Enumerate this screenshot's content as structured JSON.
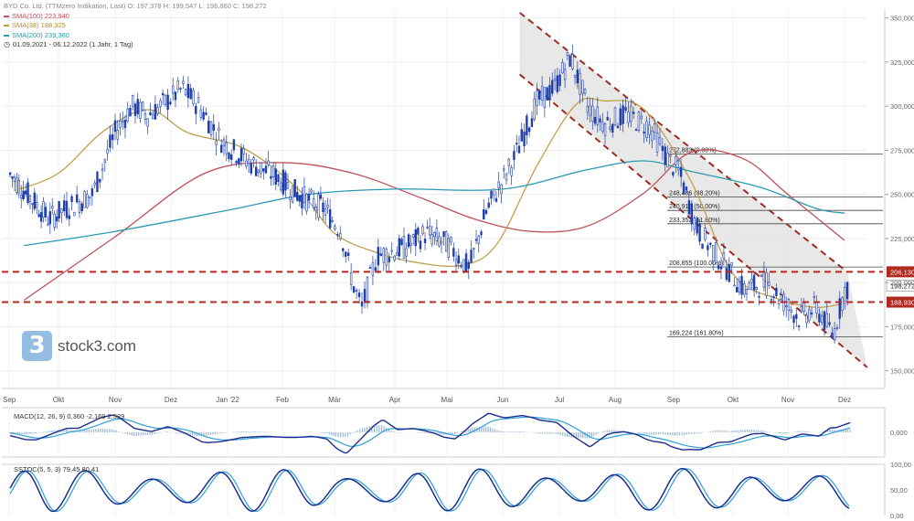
{
  "legend": {
    "title": "BYD Co. Ltd. (TTMzero Indikation, Last)  O: 197,378  H: 199,547  L: 196,860  C: 198,272",
    "sma100": "SMA(100)  223,940",
    "sma38": "SMA(38)  188,325",
    "sma200": "SMA(200)  239,360",
    "range": "01.09.2021 - 06.12.2022   (1 Jahr, 1 Tag)"
  },
  "logo": {
    "text": "stock3.com",
    "glyph": "3"
  },
  "colors": {
    "candle": "#1f3fae",
    "sma100": "#c0505a",
    "sma38": "#c1a04a",
    "sma200": "#2b9bb0",
    "support": "#b02a22",
    "channel": "#a02a22",
    "macd": "#1c2e8c",
    "signal": "#2aa0d8",
    "hist": "#9ab6d6"
  },
  "chart_data": {
    "type": "line",
    "x_labels": [
      "Sep",
      "Okt",
      "Nov",
      "Dez",
      "Jan '22",
      "Feb",
      "Mär",
      "Apr",
      "Mai",
      "Jun",
      "Jul",
      "Aug",
      "Sep",
      "Okt",
      "Nov",
      "Dez"
    ],
    "y_ticks": [
      "350,000",
      "325,000",
      "300,000",
      "275,000",
      "250,000",
      "225,000",
      "200,000",
      "175,000",
      "150,000"
    ],
    "ylim": [
      140,
      355
    ],
    "series": [
      {
        "name": "SMA(100)",
        "x": [
          0.3,
          2,
          3.6,
          5,
          6.3,
          7.5,
          8.5,
          9.5,
          10.5,
          11.5,
          12.3,
          13.2,
          14,
          15
        ],
        "y": [
          190,
          226,
          262,
          268,
          262,
          248,
          236,
          229,
          232,
          251,
          274,
          270,
          250,
          223.94
        ]
      },
      {
        "name": "SMA(38)",
        "x": [
          0.1,
          1,
          1.8,
          2.6,
          3.3,
          4.3,
          5.3,
          6,
          6.7,
          7.5,
          8.3,
          8.9,
          9.6,
          10.3,
          10.8,
          11.5,
          12.3,
          13,
          13.8,
          14.5,
          15
        ],
        "y": [
          252,
          262,
          286,
          298,
          285,
          276,
          253,
          228,
          217,
          211,
          210,
          222,
          266,
          301,
          303,
          298,
          257,
          205,
          191,
          186,
          188.325
        ]
      },
      {
        "name": "SMA(200)",
        "x": [
          0.3,
          2,
          4,
          5.5,
          7,
          9,
          10.5,
          11.5,
          12.3,
          13.5,
          14.5,
          15
        ],
        "y": [
          221,
          229,
          241,
          250,
          253,
          253,
          264,
          269,
          263,
          254,
          242,
          239.36
        ]
      }
    ],
    "price_labels": [
      "206,130",
      "198,272",
      "188,930"
    ],
    "support_levels": [
      206.13,
      188.93
    ],
    "fib_levels": [
      {
        "label": "272,883 (0.00%)",
        "value": 272.883
      },
      {
        "label": "248,486 (38.20%)",
        "value": 248.486
      },
      {
        "label": "240,919 (50.00%)",
        "value": 240.919
      },
      {
        "label": "233,352 (61.80%)",
        "value": 233.352
      },
      {
        "label": "208,855 (100.00%)",
        "value": 208.855
      },
      {
        "label": "169,224 (161.80%)",
        "value": 169.224
      }
    ],
    "channel": {
      "upper": [
        [
          9.3,
          353
        ],
        [
          15.05,
          206
        ]
      ],
      "lower": [
        [
          9.3,
          318
        ],
        [
          15.4,
          152
        ]
      ]
    },
    "macd": {
      "label": "MACD(12, 26, 9)  0,360  -2,169  2,529",
      "y_ticks": [
        "0,000"
      ]
    },
    "stoch": {
      "label": "SSTOC(5, 5, 3)  79,45  80,41",
      "y_ticks": [
        "100,00",
        "50,00",
        "0,00"
      ]
    }
  }
}
